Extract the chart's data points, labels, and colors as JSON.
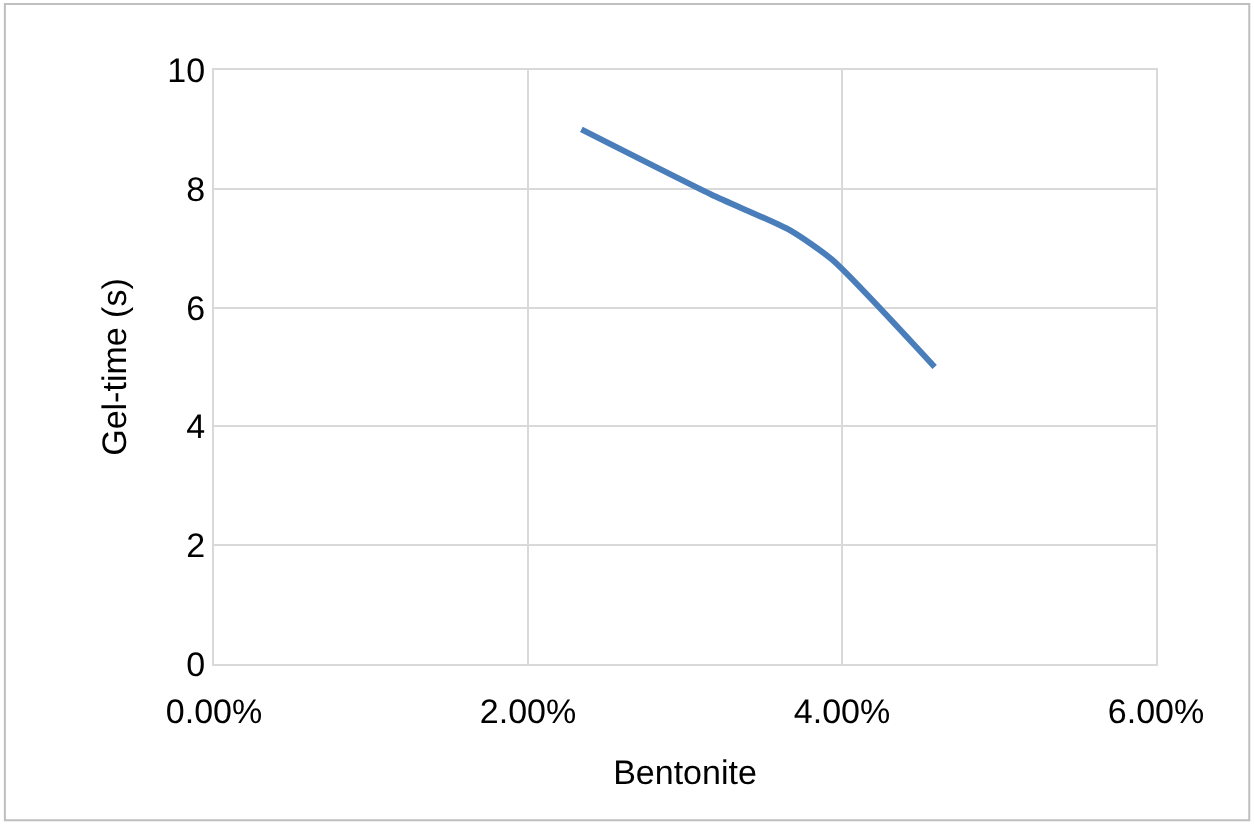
{
  "chart_data": {
    "type": "line",
    "xlabel": "Bentonite",
    "ylabel": "Gel-time (s)",
    "x": [
      0.0234,
      0.0317,
      0.0367,
      0.0394,
      0.0459
    ],
    "series": [
      {
        "color": "#4a7ebb",
        "values": [
          9.0,
          7.9,
          7.3,
          6.8,
          5.0
        ]
      }
    ],
    "xlim": [
      0,
      0.06
    ],
    "xticks": [
      {
        "value": 0,
        "label": "0.00%"
      },
      {
        "value": 0.02,
        "label": "2.00%"
      },
      {
        "value": 0.04,
        "label": "4.00%"
      },
      {
        "value": 0.06,
        "label": "6.00%"
      }
    ],
    "ylim": [
      0,
      10
    ],
    "yticks": [
      0,
      2,
      4,
      6,
      8,
      10
    ],
    "grid": true,
    "marker": "none",
    "line_style": "solid"
  }
}
